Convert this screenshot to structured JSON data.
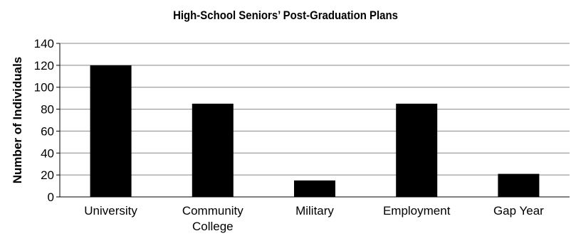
{
  "chart_data": {
    "type": "bar",
    "title": "High-School Seniors’ Post-Graduation Plans",
    "xlabel": "",
    "ylabel": "Number of Individuals",
    "categories": [
      [
        "University"
      ],
      [
        "Community",
        "College"
      ],
      [
        "Military"
      ],
      [
        "Employment"
      ],
      [
        "Gap Year"
      ]
    ],
    "values": [
      120,
      85,
      15,
      85,
      21
    ],
    "ylim": [
      0,
      140
    ],
    "yticks": [
      "0",
      "20",
      "40",
      "60",
      "80",
      "100",
      "120",
      "140"
    ],
    "grid": true,
    "legend": "none",
    "colors": {
      "bar": "#000000",
      "grid": "#888888",
      "axis": "#000000",
      "background": "#ffffff"
    }
  }
}
